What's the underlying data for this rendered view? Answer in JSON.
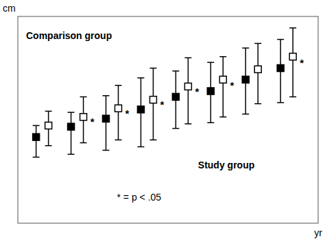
{
  "chart_data": {
    "type": "errorbar",
    "xlabel": "yr",
    "ylabel": "cm",
    "x": [
      1,
      2,
      3,
      4,
      5,
      6,
      7,
      8
    ],
    "xlim": [
      0.3,
      8.9
    ],
    "ylim": [
      -12,
      24
    ],
    "grid": false,
    "tick_labels": false,
    "series": [
      {
        "name": "Comparison group",
        "color": "#000000",
        "marker": "square-open",
        "values": [
          5.0,
          6.5,
          8.0,
          9.5,
          11.8,
          13.0,
          14.8,
          17.0
        ],
        "error_upper": [
          2.5,
          3.5,
          4.0,
          5.5,
          5.0,
          4.0,
          4.5,
          5.0
        ],
        "error_lower": [
          3.5,
          4.5,
          5.5,
          7.0,
          6.5,
          6.5,
          6.0,
          7.0
        ]
      },
      {
        "name": "Study group",
        "color": "#000000",
        "marker": "square",
        "values": [
          3.0,
          4.8,
          6.2,
          7.8,
          10.0,
          11.0,
          13.0,
          15.0
        ],
        "error_upper": [
          2.0,
          2.5,
          4.0,
          5.5,
          4.5,
          5.0,
          5.5,
          5.0
        ],
        "error_lower": [
          3.5,
          4.8,
          5.5,
          6.5,
          5.5,
          5.5,
          6.0,
          6.0
        ]
      }
    ],
    "annotations": [
      {
        "text": "*",
        "x": 2
      },
      {
        "text": "*",
        "x": 3
      },
      {
        "text": "*",
        "x": 4
      },
      {
        "text": "*",
        "x": 5
      },
      {
        "text": "*",
        "x": 6
      },
      {
        "text": "*",
        "x": 8
      }
    ],
    "note": "* = p < .05"
  }
}
